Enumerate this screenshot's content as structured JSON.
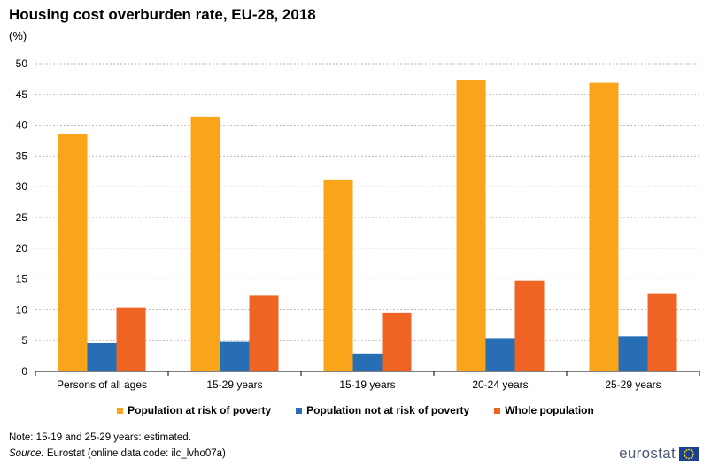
{
  "header": {
    "title": "Housing cost overburden rate, EU-28, 2018",
    "unit": "(%)"
  },
  "footer": {
    "note": "Note: 15-19 and 25-29 years: estimated.",
    "source_label": "Source:",
    "source_text": "Eurostat (online data code: ilc_lvho07a)",
    "logo_text": "eurostat",
    "flag_icon": "eu-flag-icon"
  },
  "chart_data": {
    "type": "bar",
    "categories": [
      "Persons of all ages",
      "15-29 years",
      "15-19 years",
      "20-24 years",
      "25-29 years"
    ],
    "series": [
      {
        "name": "Population at risk of poverty",
        "color": "#faa519",
        "values": [
          38.5,
          41.4,
          31.2,
          47.3,
          46.9
        ]
      },
      {
        "name": "Population not at risk of poverty",
        "color": "#286eb4",
        "values": [
          4.6,
          4.8,
          2.9,
          5.4,
          5.7
        ]
      },
      {
        "name": "Whole population",
        "color": "#f06423",
        "values": [
          10.4,
          12.3,
          9.5,
          14.7,
          12.7
        ]
      }
    ],
    "ylim": [
      0,
      50
    ],
    "yticks": [
      0,
      5,
      10,
      15,
      20,
      25,
      30,
      35,
      40,
      45,
      50
    ],
    "grid": true,
    "legend_position": "bottom"
  }
}
